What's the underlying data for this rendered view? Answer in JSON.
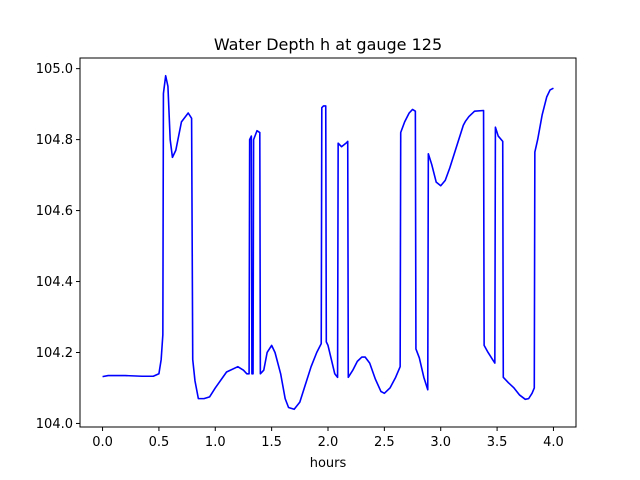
{
  "chart_data": {
    "type": "line",
    "title": "Water Depth h at gauge 125",
    "xlabel": "hours",
    "ylabel": "",
    "xlim": [
      -0.2,
      4.2
    ],
    "ylim": [
      103.99,
      105.03
    ],
    "grid": false,
    "x_ticks": [
      0.0,
      0.5,
      1.0,
      1.5,
      2.0,
      2.5,
      3.0,
      3.5,
      4.0
    ],
    "x_tick_labels": [
      "0.0",
      "0.5",
      "1.0",
      "1.5",
      "2.0",
      "2.5",
      "3.0",
      "3.5",
      "4.0"
    ],
    "y_ticks": [
      104.0,
      104.2,
      104.4,
      104.6,
      104.8,
      105.0
    ],
    "y_tick_labels": [
      "104.0",
      "104.2",
      "104.4",
      "104.6",
      "104.8",
      "105.0"
    ],
    "series": [
      {
        "color": "#0000ff",
        "points": [
          [
            0.0,
            104.132
          ],
          [
            0.05,
            104.135
          ],
          [
            0.2,
            104.135
          ],
          [
            0.35,
            104.133
          ],
          [
            0.45,
            104.133
          ],
          [
            0.5,
            104.14
          ],
          [
            0.52,
            104.18
          ],
          [
            0.535,
            104.25
          ],
          [
            0.54,
            104.93
          ],
          [
            0.56,
            104.98
          ],
          [
            0.58,
            104.95
          ],
          [
            0.6,
            104.8
          ],
          [
            0.62,
            104.75
          ],
          [
            0.65,
            104.77
          ],
          [
            0.7,
            104.85
          ],
          [
            0.76,
            104.875
          ],
          [
            0.79,
            104.86
          ],
          [
            0.8,
            104.18
          ],
          [
            0.82,
            104.12
          ],
          [
            0.85,
            104.07
          ],
          [
            0.9,
            104.07
          ],
          [
            0.95,
            104.075
          ],
          [
            1.0,
            104.1
          ],
          [
            1.1,
            104.145
          ],
          [
            1.2,
            104.16
          ],
          [
            1.25,
            104.15
          ],
          [
            1.28,
            104.14
          ],
          [
            1.3,
            104.14
          ],
          [
            1.305,
            104.8
          ],
          [
            1.32,
            104.81
          ],
          [
            1.325,
            104.14
          ],
          [
            1.335,
            104.14
          ],
          [
            1.34,
            104.8
          ],
          [
            1.37,
            104.825
          ],
          [
            1.395,
            104.82
          ],
          [
            1.4,
            104.14
          ],
          [
            1.43,
            104.15
          ],
          [
            1.46,
            104.2
          ],
          [
            1.5,
            104.22
          ],
          [
            1.53,
            104.2
          ],
          [
            1.58,
            104.14
          ],
          [
            1.62,
            104.07
          ],
          [
            1.65,
            104.045
          ],
          [
            1.7,
            104.04
          ],
          [
            1.75,
            104.06
          ],
          [
            1.8,
            104.11
          ],
          [
            1.85,
            104.16
          ],
          [
            1.9,
            104.2
          ],
          [
            1.94,
            104.225
          ],
          [
            1.945,
            104.89
          ],
          [
            1.96,
            104.895
          ],
          [
            1.98,
            104.895
          ],
          [
            1.985,
            104.23
          ],
          [
            2.0,
            104.22
          ],
          [
            2.03,
            104.18
          ],
          [
            2.06,
            104.14
          ],
          [
            2.085,
            104.13
          ],
          [
            2.09,
            104.79
          ],
          [
            2.12,
            104.78
          ],
          [
            2.16,
            104.79
          ],
          [
            2.175,
            104.795
          ],
          [
            2.18,
            104.13
          ],
          [
            2.22,
            104.15
          ],
          [
            2.26,
            104.175
          ],
          [
            2.3,
            104.187
          ],
          [
            2.33,
            104.187
          ],
          [
            2.37,
            104.17
          ],
          [
            2.42,
            104.125
          ],
          [
            2.47,
            104.09
          ],
          [
            2.5,
            104.085
          ],
          [
            2.55,
            104.1
          ],
          [
            2.6,
            104.13
          ],
          [
            2.64,
            104.16
          ],
          [
            2.645,
            104.82
          ],
          [
            2.68,
            104.85
          ],
          [
            2.72,
            104.875
          ],
          [
            2.75,
            104.885
          ],
          [
            2.775,
            104.88
          ],
          [
            2.78,
            104.21
          ],
          [
            2.81,
            104.185
          ],
          [
            2.85,
            104.13
          ],
          [
            2.88,
            104.1
          ],
          [
            2.885,
            104.095
          ],
          [
            2.89,
            104.76
          ],
          [
            2.92,
            104.73
          ],
          [
            2.96,
            104.68
          ],
          [
            3.0,
            104.67
          ],
          [
            3.04,
            104.685
          ],
          [
            3.08,
            104.72
          ],
          [
            3.15,
            104.79
          ],
          [
            3.2,
            104.84
          ],
          [
            3.22,
            104.852
          ],
          [
            3.25,
            104.865
          ],
          [
            3.3,
            104.88
          ],
          [
            3.38,
            104.882
          ],
          [
            3.385,
            104.22
          ],
          [
            3.42,
            104.2
          ],
          [
            3.46,
            104.18
          ],
          [
            3.48,
            104.17
          ],
          [
            3.485,
            104.835
          ],
          [
            3.51,
            104.81
          ],
          [
            3.55,
            104.795
          ],
          [
            3.555,
            104.13
          ],
          [
            3.6,
            104.115
          ],
          [
            3.65,
            104.1
          ],
          [
            3.7,
            104.08
          ],
          [
            3.75,
            104.068
          ],
          [
            3.78,
            104.07
          ],
          [
            3.81,
            104.085
          ],
          [
            3.83,
            104.1
          ],
          [
            3.835,
            104.765
          ],
          [
            3.86,
            104.8
          ],
          [
            3.9,
            104.87
          ],
          [
            3.94,
            104.92
          ],
          [
            3.97,
            104.94
          ],
          [
            4.0,
            104.945
          ]
        ]
      }
    ]
  }
}
